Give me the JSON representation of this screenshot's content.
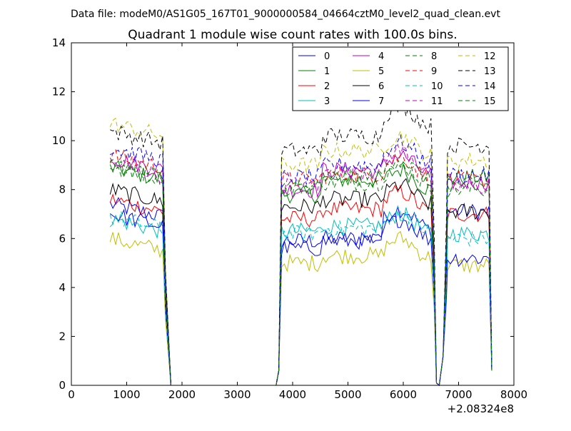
{
  "suptitle": "Data file: modeM0/AS1G05_167T01_9000000584_04664cztM0_level2_quad_clean.evt",
  "chart_data": {
    "type": "line",
    "title": "Quadrant 1 module wise count rates with 100.0s bins.",
    "xlabel": "",
    "ylabel": "",
    "x_offset_label": "+2.08324e8",
    "xlim": [
      0,
      8000
    ],
    "ylim": [
      0,
      14
    ],
    "x_ticks": [
      0,
      1000,
      2000,
      3000,
      4000,
      5000,
      6000,
      7000,
      8000
    ],
    "y_ticks": [
      0,
      2,
      4,
      6,
      8,
      10,
      12,
      14
    ],
    "x_tick_labels": [
      "0",
      "1000",
      "2000",
      "3000",
      "4000",
      "5000",
      "6000",
      "7000",
      "8000"
    ],
    "y_tick_labels": [
      "0",
      "2",
      "4",
      "6",
      "8",
      "10",
      "12",
      "14"
    ],
    "grid": false,
    "legend_position": "top-right",
    "legend_columns": 4,
    "series": [
      {
        "name": "0",
        "color": "#0000ff",
        "dash": "solid",
        "levels": [
          7.4,
          5.9,
          6.0,
          6.8,
          7.1
        ]
      },
      {
        "name": "1",
        "color": "#008000",
        "dash": "solid",
        "levels": [
          8.9,
          7.8,
          8.4,
          8.4,
          8.5
        ]
      },
      {
        "name": "2",
        "color": "#ff0000",
        "dash": "solid",
        "levels": [
          7.6,
          6.8,
          7.2,
          7.5,
          7.0
        ]
      },
      {
        "name": "3",
        "color": "#00bfbf",
        "dash": "solid",
        "levels": [
          6.8,
          6.3,
          6.5,
          6.6,
          6.2
        ]
      },
      {
        "name": "4",
        "color": "#bf00bf",
        "dash": "solid",
        "levels": [
          9.3,
          8.0,
          8.8,
          9.0,
          8.3
        ]
      },
      {
        "name": "5",
        "color": "#bfbf00",
        "dash": "solid",
        "levels": [
          6.0,
          5.0,
          5.3,
          5.6,
          4.9
        ]
      },
      {
        "name": "6",
        "color": "#000000",
        "dash": "solid",
        "levels": [
          8.0,
          7.3,
          7.6,
          7.8,
          7.1
        ]
      },
      {
        "name": "7",
        "color": "#0000ff",
        "dash": "solid",
        "levels": [
          7.0,
          5.6,
          5.9,
          6.4,
          5.2
        ]
      },
      {
        "name": "8",
        "color": "#008000",
        "dash": "dashed",
        "levels": [
          9.0,
          8.1,
          8.3,
          8.6,
          8.0
        ]
      },
      {
        "name": "9",
        "color": "#ff0000",
        "dash": "dashed",
        "levels": [
          9.4,
          8.4,
          8.6,
          8.9,
          8.4
        ]
      },
      {
        "name": "10",
        "color": "#00bfbf",
        "dash": "dashed",
        "levels": [
          6.9,
          6.2,
          6.4,
          6.7,
          6.0
        ]
      },
      {
        "name": "11",
        "color": "#bf00bf",
        "dash": "dashed",
        "levels": [
          9.1,
          8.2,
          8.7,
          9.2,
          8.1
        ]
      },
      {
        "name": "12",
        "color": "#bfbf00",
        "dash": "dashed",
        "levels": [
          10.7,
          9.0,
          9.6,
          9.8,
          9.2
        ]
      },
      {
        "name": "13",
        "color": "#000000",
        "dash": "dashed",
        "levels": [
          10.4,
          9.6,
          10.2,
          11.0,
          9.8
        ]
      },
      {
        "name": "14",
        "color": "#0000ff",
        "dash": "dashed",
        "levels": [
          9.7,
          8.5,
          9.0,
          9.5,
          8.6
        ]
      },
      {
        "name": "15",
        "color": "#008000",
        "dash": "dashed",
        "levels": [
          9.0,
          8.1,
          8.5,
          8.8,
          8.2
        ]
      }
    ],
    "segments_note": "levels = typical count rate on five active intervals: 700-1650, 3800-4500, 4500-5600, 5600-6500, 6800-7600; rates near 0 between 1800-3700 and 6550-6700",
    "intervals": [
      [
        700,
        1650
      ],
      [
        3800,
        4500
      ],
      [
        4500,
        5600
      ],
      [
        5600,
        6500
      ],
      [
        6800,
        7600
      ]
    ]
  }
}
